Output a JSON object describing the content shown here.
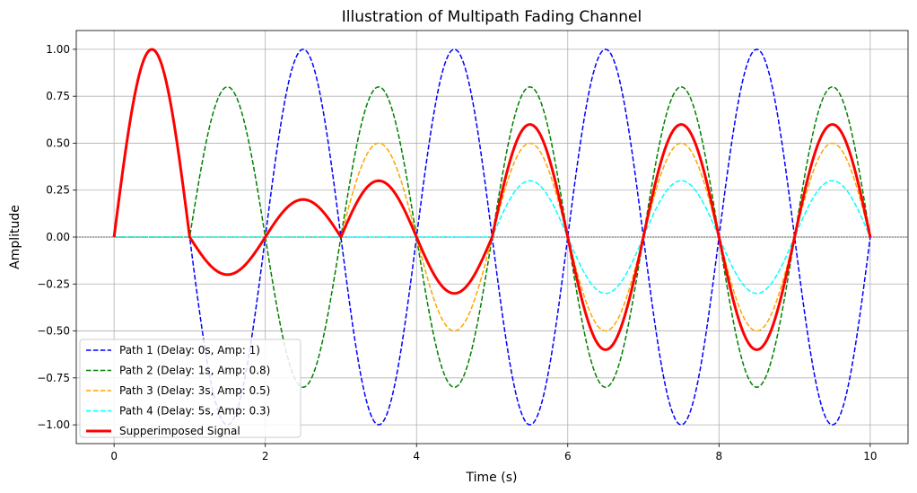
{
  "chart_data": {
    "type": "line",
    "title": "Illustration of Multipath Fading Channel",
    "xlabel": "Time (s)",
    "ylabel": "Amplitude",
    "xlim": [
      -0.5,
      10.5
    ],
    "ylim": [
      -1.1,
      1.1
    ],
    "xticks": [
      0,
      2,
      4,
      6,
      8,
      10
    ],
    "xtick_labels": [
      "0",
      "2",
      "4",
      "6",
      "8",
      "10"
    ],
    "yticks": [
      -1.0,
      -0.75,
      -0.5,
      -0.25,
      0.0,
      0.25,
      0.5,
      0.75,
      1.0
    ],
    "ytick_labels": [
      "−1.00",
      "−0.75",
      "−0.50",
      "−0.25",
      "0.00",
      "0.25",
      "0.50",
      "0.75",
      "1.00"
    ],
    "grid": true,
    "zero_line": true,
    "legend_position": "lower-left",
    "x": [
      0,
      0.5,
      1,
      1.5,
      2,
      2.5,
      3,
      3.5,
      4,
      4.5,
      5,
      5.5,
      6,
      6.5,
      7,
      7.5,
      8,
      8.5,
      9,
      9.5,
      10
    ],
    "series": [
      {
        "name": "Path 1 (Delay: 0s, Amp: 1)",
        "color": "#0000ff",
        "dash": "dashed",
        "width": 1.5,
        "values": [
          0,
          1,
          0,
          -1,
          0,
          1,
          0,
          -1,
          0,
          1,
          0,
          -1,
          0,
          1,
          0,
          -1,
          0,
          1,
          0,
          -1,
          0
        ]
      },
      {
        "name": "Path 2 (Delay: 1s, Amp: 0.8)",
        "color": "#008000",
        "dash": "dashed",
        "width": 1.5,
        "values": [
          0,
          0,
          0,
          0.8,
          0,
          -0.8,
          0,
          0.8,
          0,
          -0.8,
          0,
          0.8,
          0,
          -0.8,
          0,
          0.8,
          0,
          -0.8,
          0,
          0.8,
          0
        ]
      },
      {
        "name": "Path 3 (Delay: 3s, Amp: 0.5)",
        "color": "#ffa500",
        "dash": "dashed",
        "width": 1.5,
        "values": [
          0,
          0,
          0,
          0,
          0,
          0,
          0,
          0.5,
          0,
          -0.5,
          0,
          0.5,
          0,
          -0.5,
          0,
          0.5,
          0,
          -0.5,
          0,
          0.5,
          0
        ]
      },
      {
        "name": "Path 4 (Delay: 5s, Amp: 0.3)",
        "color": "#00ffff",
        "dash": "dashed",
        "width": 1.5,
        "values": [
          0,
          0,
          0,
          0,
          0,
          0,
          0,
          0,
          0,
          0,
          0,
          0.3,
          0,
          -0.3,
          0,
          0.3,
          0,
          -0.3,
          0,
          0.3,
          0
        ]
      },
      {
        "name": "Supperimposed Signal",
        "color": "#ff0000",
        "dash": "solid",
        "width": 3,
        "values": [
          0,
          1,
          0,
          -0.2,
          0,
          0.2,
          0,
          0.3,
          0,
          -0.3,
          0,
          0.6,
          0,
          -0.6,
          0,
          0.6,
          0,
          -0.6,
          0,
          0.6,
          0
        ]
      }
    ]
  }
}
